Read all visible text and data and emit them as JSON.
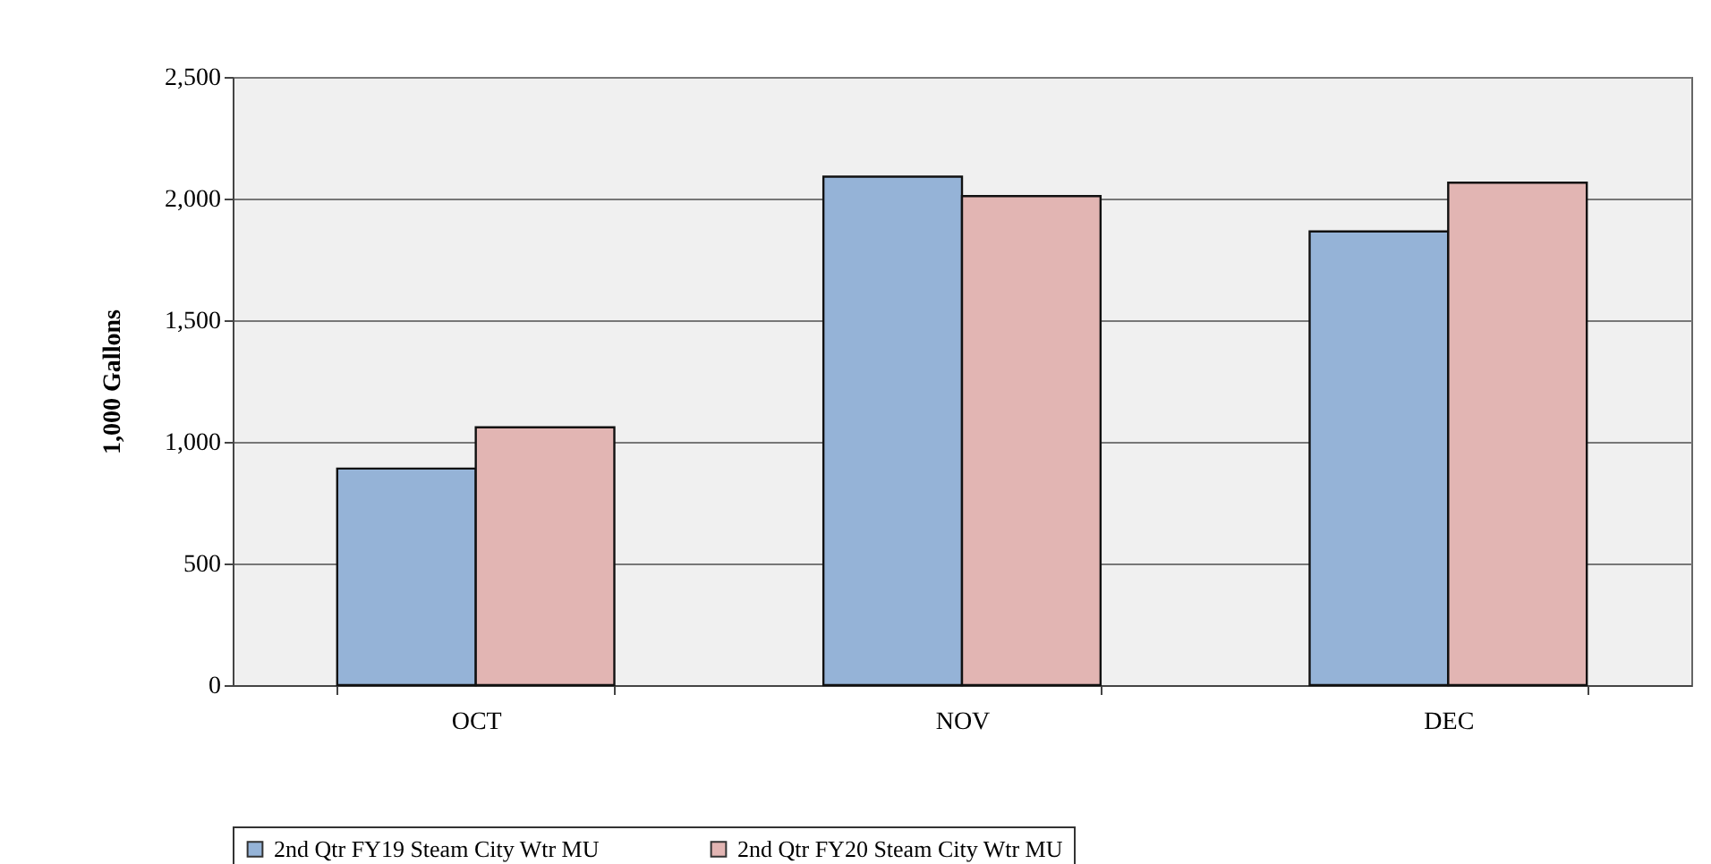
{
  "chart_data": {
    "type": "bar",
    "ylabel": "1,000 Gallons",
    "categories": [
      "OCT",
      "NOV",
      "DEC"
    ],
    "series": [
      {
        "name": "2nd Qtr FY19 Steam City Wtr MU",
        "color": "#95b3d7",
        "values": [
          890,
          2090,
          1865
        ]
      },
      {
        "name": "2nd Qtr FY20 Steam City Wtr MU",
        "color": "#e2b5b3",
        "values": [
          1060,
          2010,
          2065
        ]
      }
    ],
    "ylim": [
      0,
      2500
    ],
    "yticks": [
      0,
      500,
      {
        "value": 1000,
        "label": "1,000"
      },
      {
        "value": 1500,
        "label": "1,500"
      },
      {
        "value": 2000,
        "label": "2,000"
      },
      {
        "value": 2500,
        "label": "2,500"
      }
    ],
    "grid": "y",
    "legend": "bottom"
  }
}
